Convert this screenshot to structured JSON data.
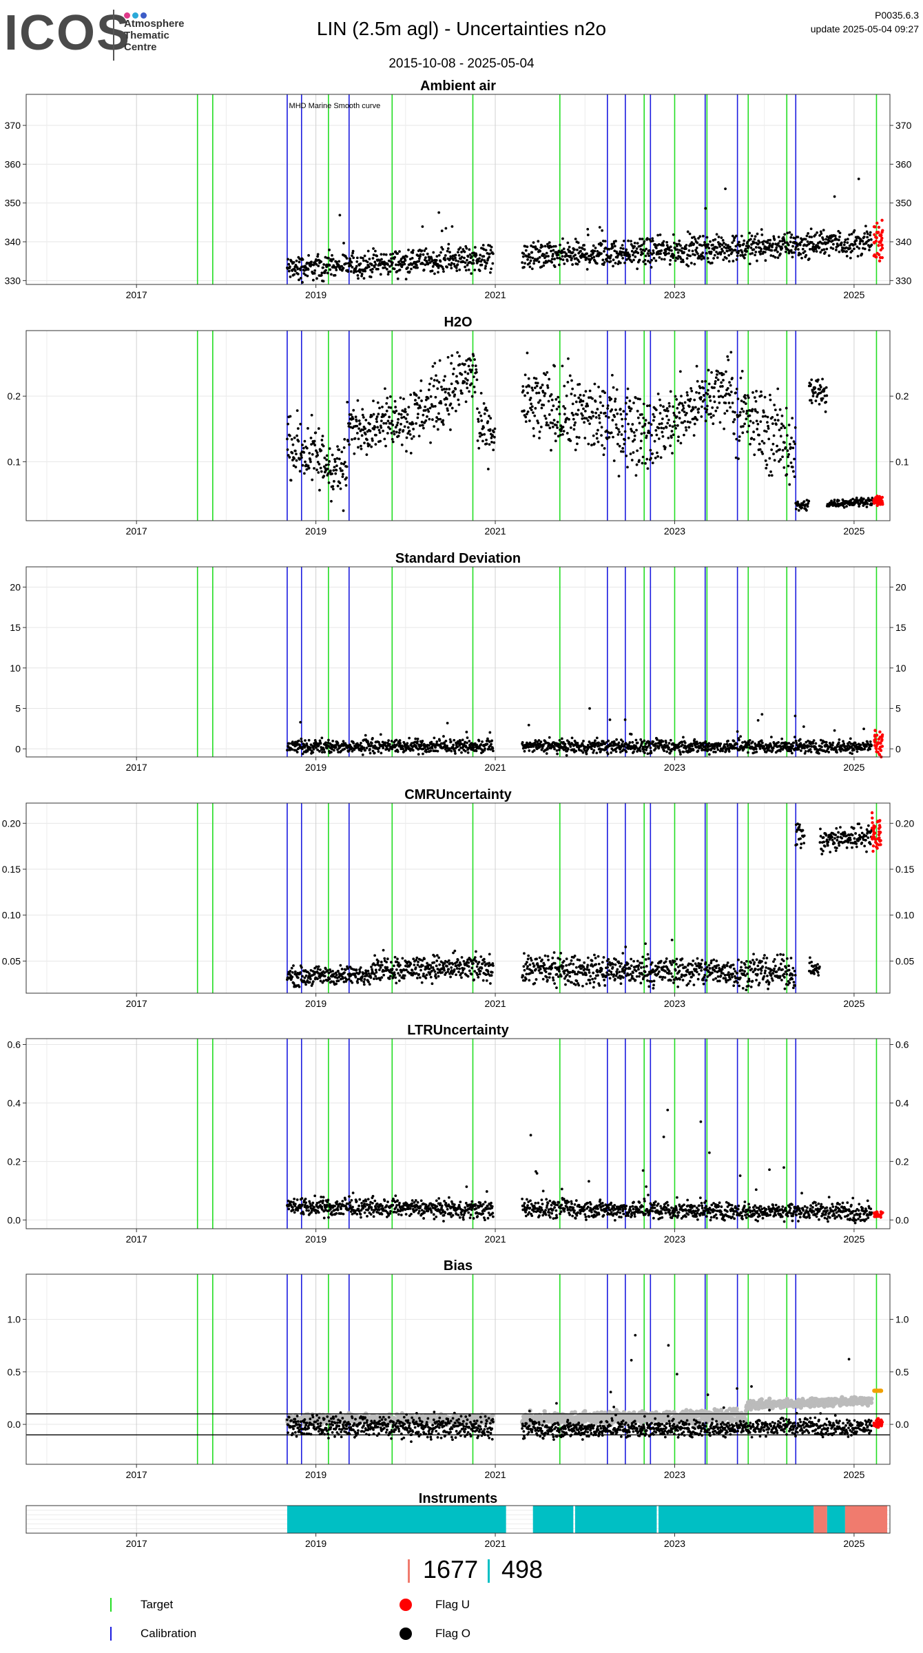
{
  "header": {
    "logo": "ICOS",
    "logo_lines": [
      "Atmosphere",
      "Thematic",
      "Centre"
    ],
    "dot_colors": [
      "#e03a8a",
      "#2aa9d8",
      "#3d5cc7"
    ],
    "title": "LIN  (2.5m agl) - Uncertainties n2o",
    "range": "2015-10-08 - 2025-05-04",
    "version": "P0035.6.3",
    "update": "update  2025-05-04 09:27"
  },
  "colors": {
    "target": "#22dd22",
    "calibration": "#1a1adf",
    "flag_u": "#ff0000",
    "flag_o": "#000000",
    "grey_series": "#bbbbbb",
    "orange_series": "#f0a000",
    "instrument_a": "#f07b6e",
    "instrument_b": "#00bfc4"
  },
  "chart_data": {
    "x_range": [
      2015.77,
      2025.4
    ],
    "x_ticks": [
      2017,
      2019,
      2021,
      2023,
      2025
    ],
    "target_dates": [
      2017.68,
      2017.85,
      2019.14,
      2019.85,
      2020.75,
      2021.72,
      2022.66,
      2023.0,
      2023.36,
      2023.82,
      2024.25,
      2025.25
    ],
    "calibration_dates": [
      2018.68,
      2018.84,
      2019.37,
      2022.25,
      2022.45,
      2022.73,
      2023.34,
      2023.7,
      2024.35
    ],
    "panels": [
      {
        "id": "ambient-air",
        "type": "scatter",
        "title": "Ambient air",
        "annotation": "MHD Marine Smooth curve",
        "y_range": [
          329,
          378
        ],
        "y_ticks": [
          330,
          340,
          350,
          360,
          370
        ],
        "y_tick_labels": [
          "330",
          "340",
          "350",
          "360",
          "370"
        ],
        "x_tick_labels": [
          "2017",
          "2019",
          "2021",
          "2023",
          "2025"
        ],
        "segments": [
          {
            "x0": 2018.68,
            "x1": 2020.98,
            "y0": 333,
            "y1": 336,
            "noise": 1.6,
            "spike": 12
          },
          {
            "x0": 2021.3,
            "x1": 2025.2,
            "y0": 336,
            "y1": 340,
            "noise": 1.7,
            "spike": 25
          }
        ],
        "flag_u": {
          "x0": 2025.22,
          "x1": 2025.32,
          "y": 340,
          "noise": 2.5
        }
      },
      {
        "id": "h2o",
        "type": "scatter",
        "title": "H2O",
        "y_range": [
          0.01,
          0.3
        ],
        "y_ticks": [
          0.1,
          0.2
        ],
        "y_tick_labels": [
          "0.1",
          "0.2"
        ],
        "x_tick_labels": [
          "2017",
          "2019",
          "2021",
          "2023",
          "2025"
        ],
        "segments": [
          {
            "x0": 2018.68,
            "x1": 2019.35,
            "y0": 0.13,
            "y1": 0.08,
            "noise": 0.025,
            "spike": 0
          },
          {
            "x0": 2019.35,
            "x1": 2020.0,
            "y0": 0.15,
            "y1": 0.17,
            "noise": 0.018,
            "spike": 0
          },
          {
            "x0": 2020.0,
            "x1": 2020.8,
            "y0": 0.16,
            "y1": 0.24,
            "noise": 0.025,
            "spike": 0
          },
          {
            "x0": 2020.8,
            "x1": 2021.0,
            "y0": 0.15,
            "y1": 0.14,
            "noise": 0.02,
            "spike": 0
          },
          {
            "x0": 2021.3,
            "x1": 2022.7,
            "y0": 0.19,
            "y1": 0.15,
            "noise": 0.03,
            "spike": 0
          },
          {
            "x0": 2022.7,
            "x1": 2023.65,
            "y0": 0.14,
            "y1": 0.22,
            "noise": 0.025,
            "spike": 0
          },
          {
            "x0": 2023.65,
            "x1": 2024.35,
            "y0": 0.18,
            "y1": 0.12,
            "noise": 0.03,
            "spike": 0
          },
          {
            "x0": 2024.35,
            "x1": 2024.5,
            "y0": 0.032,
            "y1": 0.034,
            "noise": 0.004,
            "spike": 0
          },
          {
            "x0": 2024.5,
            "x1": 2024.7,
            "y0": 0.21,
            "y1": 0.2,
            "noise": 0.015,
            "spike": 0
          },
          {
            "x0": 2024.7,
            "x1": 2025.22,
            "y0": 0.036,
            "y1": 0.04,
            "noise": 0.003,
            "spike": 0
          }
        ],
        "flag_u": {
          "x0": 2025.22,
          "x1": 2025.32,
          "y": 0.04,
          "noise": 0.003
        }
      },
      {
        "id": "standard-deviation",
        "type": "scatter",
        "title": "Standard Deviation",
        "y_range": [
          -1,
          22.5
        ],
        "y_ticks": [
          0,
          5,
          10,
          15,
          20
        ],
        "y_tick_labels": [
          "0",
          "5",
          "10",
          "15",
          "20"
        ],
        "x_tick_labels": [
          "2017",
          "2019",
          "2021",
          "2023",
          "2025"
        ],
        "segments": [
          {
            "x0": 2018.68,
            "x1": 2020.98,
            "y0": 0.3,
            "y1": 0.3,
            "noise": 0.4,
            "spike": 4
          },
          {
            "x0": 2021.3,
            "x1": 2025.2,
            "y0": 0.3,
            "y1": 0.3,
            "noise": 0.4,
            "spike": 6
          }
        ],
        "flag_u": {
          "x0": 2025.22,
          "x1": 2025.32,
          "y": 0.8,
          "noise": 0.8
        }
      },
      {
        "id": "cmr-uncertainty",
        "type": "scatter",
        "title": "CMRUncertainty",
        "y_range": [
          0.015,
          0.222
        ],
        "y_ticks": [
          0.05,
          0.1,
          0.15,
          0.2
        ],
        "y_tick_labels": [
          "0.05",
          "0.10",
          "0.15",
          "0.20"
        ],
        "x_tick_labels": [
          "2017",
          "2019",
          "2021",
          "2023",
          "2025"
        ],
        "segments": [
          {
            "x0": 2018.68,
            "x1": 2019.6,
            "y0": 0.033,
            "y1": 0.035,
            "noise": 0.005,
            "spike": 0
          },
          {
            "x0": 2019.6,
            "x1": 2020.98,
            "y0": 0.043,
            "y1": 0.042,
            "noise": 0.007,
            "spike": 0.02
          },
          {
            "x0": 2021.3,
            "x1": 2024.35,
            "y0": 0.04,
            "y1": 0.038,
            "noise": 0.008,
            "spike": 0.03
          },
          {
            "x0": 2024.35,
            "x1": 2024.45,
            "y0": 0.185,
            "y1": 0.19,
            "noise": 0.01,
            "spike": 0
          },
          {
            "x0": 2024.5,
            "x1": 2024.62,
            "y0": 0.042,
            "y1": 0.04,
            "noise": 0.005,
            "spike": 0
          },
          {
            "x0": 2024.62,
            "x1": 2025.2,
            "y0": 0.18,
            "y1": 0.188,
            "noise": 0.007,
            "spike": 0
          }
        ],
        "flag_u": {
          "x0": 2025.2,
          "x1": 2025.3,
          "y": 0.19,
          "noise": 0.01
        }
      },
      {
        "id": "ltr-uncertainty",
        "type": "scatter",
        "title": "LTRUncertainty",
        "y_range": [
          -0.03,
          0.62
        ],
        "y_ticks": [
          0.0,
          0.2,
          0.4,
          0.6
        ],
        "y_tick_labels": [
          "0.0",
          "0.2",
          "0.4",
          "0.6"
        ],
        "x_tick_labels": [
          "2017",
          "2019",
          "2021",
          "2023",
          "2025"
        ],
        "segments": [
          {
            "x0": 2018.68,
            "x1": 2020.98,
            "y0": 0.045,
            "y1": 0.035,
            "noise": 0.015,
            "spike": 0.08
          },
          {
            "x0": 2021.3,
            "x1": 2025.2,
            "y0": 0.04,
            "y1": 0.025,
            "noise": 0.015,
            "spike": 0.5
          }
        ],
        "flag_u": {
          "x0": 2025.22,
          "x1": 2025.32,
          "y": 0.02,
          "noise": 0.005
        }
      },
      {
        "id": "bias",
        "type": "scatter",
        "title": "Bias",
        "y_range": [
          -0.38,
          1.43
        ],
        "y_ticks": [
          0.0,
          0.5,
          1.0
        ],
        "y_tick_labels": [
          "0.0",
          "0.5",
          "1.0"
        ],
        "x_tick_labels": [
          "2017",
          "2019",
          "2021",
          "2023",
          "2025"
        ],
        "hlines": [
          0.1,
          -0.1
        ],
        "grey_segments": [
          {
            "x0": 2018.68,
            "x1": 2020.98,
            "y0": 0.05,
            "y1": 0.05,
            "noise": 0.02
          },
          {
            "x0": 2021.3,
            "x1": 2023.8,
            "y0": 0.05,
            "y1": 0.08,
            "noise": 0.03
          },
          {
            "x0": 2023.8,
            "x1": 2025.2,
            "y0": 0.18,
            "y1": 0.23,
            "noise": 0.02
          }
        ],
        "segments": [
          {
            "x0": 2018.68,
            "x1": 2020.98,
            "y0": -0.02,
            "y1": -0.03,
            "noise": 0.05,
            "spike": 0.1
          },
          {
            "x0": 2021.3,
            "x1": 2025.2,
            "y0": -0.05,
            "y1": -0.02,
            "noise": 0.04,
            "spike": 1.3
          }
        ],
        "flag_u": {
          "x0": 2025.22,
          "x1": 2025.32,
          "y": 0.01,
          "noise": 0.02
        },
        "orange": {
          "x0": 2025.22,
          "x1": 2025.32,
          "y": 0.32
        }
      }
    ],
    "instruments": {
      "title": "Instruments",
      "x_range": [
        2015.77,
        2025.4
      ],
      "x_ticks": [
        2017,
        2019,
        2021,
        2023,
        2025
      ],
      "x_tick_labels": [
        "2017",
        "2019",
        "2021",
        "2023",
        "2025"
      ],
      "periods": [
        {
          "x0": 2018.68,
          "x1": 2021.12,
          "instrument": "b"
        },
        {
          "x0": 2021.42,
          "x1": 2021.87,
          "instrument": "b"
        },
        {
          "x0": 2021.89,
          "x1": 2022.8,
          "instrument": "b"
        },
        {
          "x0": 2022.82,
          "x1": 2024.55,
          "instrument": "b"
        },
        {
          "x0": 2024.55,
          "x1": 2024.7,
          "instrument": "a"
        },
        {
          "x0": 2024.7,
          "x1": 2024.9,
          "instrument": "b"
        },
        {
          "x0": 2024.9,
          "x1": 2025.37,
          "instrument": "a"
        }
      ],
      "counts": {
        "a": "1677",
        "b": "498"
      }
    }
  },
  "legend": {
    "target": "Target",
    "calibration": "Calibration",
    "flag_u": "Flag U",
    "flag_o": "Flag O"
  }
}
